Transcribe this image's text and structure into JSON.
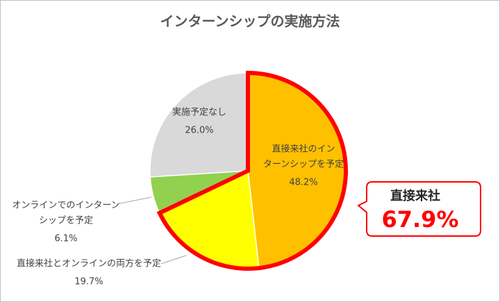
{
  "chart_data": {
    "type": "pie",
    "title": "インターンシップの実施方法",
    "categories": [
      [
        "直接来社のイン",
        "ターンシップを予定"
      ],
      [
        "直接来社とオンラインの両方を予定"
      ],
      [
        "オンラインでのインターン",
        "シップを予定"
      ],
      [
        "実施予定なし"
      ]
    ],
    "values": [
      48.2,
      19.7,
      6.1,
      26.0
    ],
    "value_labels": [
      "48.2%",
      "19.7%",
      "6.1%",
      "26.0%"
    ],
    "colors": [
      "#ffc000",
      "#ffff00",
      "#92d050",
      "#d9d9d9"
    ],
    "annotation": {
      "label": "直接来社",
      "value_label": "67.9%"
    }
  }
}
